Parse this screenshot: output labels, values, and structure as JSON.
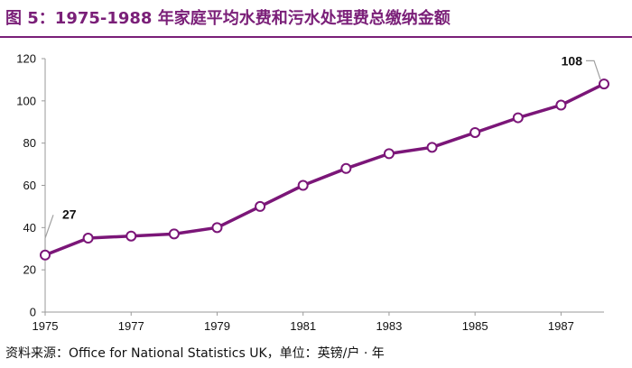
{
  "title": "图 5：1975-1988 年家庭平均水费和污水处理费总缴纳金额",
  "source": "资料来源：Office for National Statistics UK，单位：英镑/户 · 年",
  "colors": {
    "accent": "#7a1f78",
    "series": "#7b1678",
    "axis": "#9a9a9a",
    "leader": "#a0a0a0"
  },
  "chart_data": {
    "type": "line",
    "title": "图 5：1975-1988 年家庭平均水费和污水处理费总缴纳金额",
    "xlabel": "",
    "ylabel": "",
    "xlim": [
      1975,
      1988
    ],
    "ylim": [
      0,
      120
    ],
    "x_ticks": [
      1975,
      1977,
      1979,
      1981,
      1983,
      1985,
      1987
    ],
    "y_ticks": [
      0,
      20,
      40,
      60,
      80,
      100,
      120
    ],
    "grid": false,
    "markers": "hollow-circle",
    "x": [
      1975,
      1976,
      1977,
      1978,
      1979,
      1980,
      1981,
      1982,
      1983,
      1984,
      1985,
      1986,
      1987,
      1988
    ],
    "series": [
      {
        "values": [
          27,
          35,
          36,
          37,
          40,
          50,
          60,
          68,
          75,
          78,
          85,
          92,
          98,
          108
        ]
      }
    ],
    "annotations": [
      {
        "x": 1975,
        "y": 27,
        "text": "27"
      },
      {
        "x": 1988,
        "y": 108,
        "text": "108"
      }
    ]
  }
}
